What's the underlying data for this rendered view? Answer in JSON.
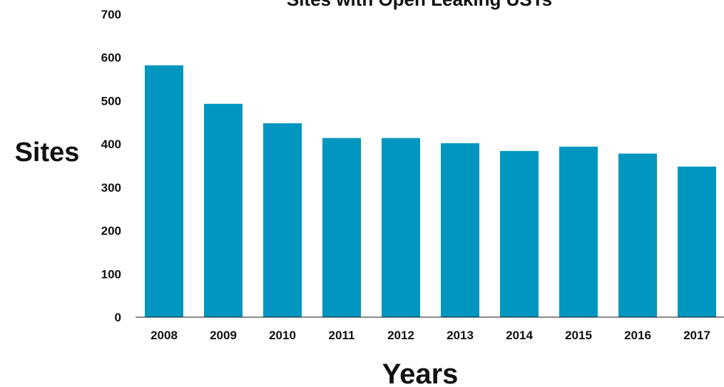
{
  "chart_data": {
    "type": "bar",
    "title": "Sites with Open Leaking USTs",
    "xlabel": "Years",
    "ylabel": "Sites",
    "categories": [
      "2008",
      "2009",
      "2010",
      "2011",
      "2012",
      "2013",
      "2014",
      "2015",
      "2016",
      "2017"
    ],
    "values": [
      582,
      493,
      448,
      414,
      414,
      402,
      384,
      394,
      378,
      348
    ],
    "ylim": [
      0,
      700
    ],
    "yticks": [
      "0",
      "100",
      "200",
      "300",
      "400",
      "500",
      "600",
      "700"
    ],
    "bar_color": "#0096c0",
    "grid": false,
    "legend": "none"
  }
}
